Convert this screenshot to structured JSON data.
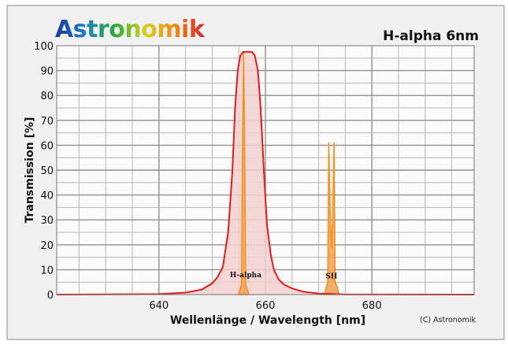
{
  "chart_data": {
    "type": "line",
    "title": "H-alpha 6nm",
    "logo": "Astronomik",
    "xlabel": "Wellenlänge / Wavelength [nm]",
    "ylabel": "Transmission [%]",
    "copyright": "(C) Astronomik",
    "xlim": [
      620.8,
      699.2
    ],
    "ylim": [
      0,
      100
    ],
    "xticks": [
      640,
      660,
      680
    ],
    "xtick_labels": [
      "640",
      "660",
      "680"
    ],
    "yticks": [
      0,
      10,
      20,
      30,
      40,
      50,
      60,
      70,
      80,
      90,
      100
    ],
    "ytick_labels": [
      "0",
      "10",
      "20",
      "30",
      "40",
      "50",
      "60",
      "70",
      "80",
      "90",
      "100"
    ],
    "x_minor_step": 5,
    "y_minor_step": 5,
    "grid": true,
    "colors": {
      "filter": "#e31b1b",
      "filter_fill": "#f2d0d0",
      "lines": "#f5901e",
      "lines_fill": "#f2a65a",
      "grid": "#a0a0a0",
      "bg": "#f1f1f1"
    },
    "series": [
      {
        "name": "H-alpha 6nm filter transmission",
        "points": [
          [
            620.8,
            0
          ],
          [
            640,
            0.2
          ],
          [
            645,
            0.8
          ],
          [
            648,
            2
          ],
          [
            650,
            4.5
          ],
          [
            651,
            7
          ],
          [
            652,
            11
          ],
          [
            653,
            25
          ],
          [
            653.8,
            50
          ],
          [
            654.3,
            75
          ],
          [
            654.8,
            90
          ],
          [
            655.3,
            96
          ],
          [
            655.8,
            97.5
          ],
          [
            657.5,
            97.5
          ],
          [
            658,
            96
          ],
          [
            658.6,
            90
          ],
          [
            659.1,
            75
          ],
          [
            659.7,
            50
          ],
          [
            660.3,
            28
          ],
          [
            661,
            16
          ],
          [
            661.6,
            10
          ],
          [
            662.5,
            6
          ],
          [
            663.5,
            4
          ],
          [
            665,
            2.5
          ],
          [
            667,
            1.2
          ],
          [
            670,
            0.4
          ],
          [
            675,
            0.1
          ],
          [
            699.2,
            0
          ]
        ]
      },
      {
        "name": "H-alpha",
        "points": [
          [
            654.9,
            0
          ],
          [
            655.2,
            2
          ],
          [
            655.5,
            4
          ],
          [
            655.7,
            60
          ],
          [
            655.9,
            97
          ],
          [
            656.1,
            60
          ],
          [
            656.3,
            4
          ],
          [
            656.6,
            2
          ],
          [
            656.9,
            0
          ]
        ]
      },
      {
        "name": "SII",
        "points": [
          [
            671.1,
            0
          ],
          [
            671.4,
            3
          ],
          [
            671.7,
            5
          ],
          [
            671.9,
            61
          ],
          [
            672.2,
            30
          ],
          [
            672.4,
            19
          ],
          [
            672.6,
            30
          ],
          [
            672.9,
            61
          ],
          [
            673.1,
            5
          ],
          [
            673.5,
            3
          ],
          [
            673.8,
            0
          ]
        ]
      }
    ],
    "annotations": [
      {
        "text": "H-alpha",
        "x": 656.3,
        "y": 7
      },
      {
        "text": "SII",
        "x": 672.4,
        "y": 6.5
      }
    ]
  }
}
